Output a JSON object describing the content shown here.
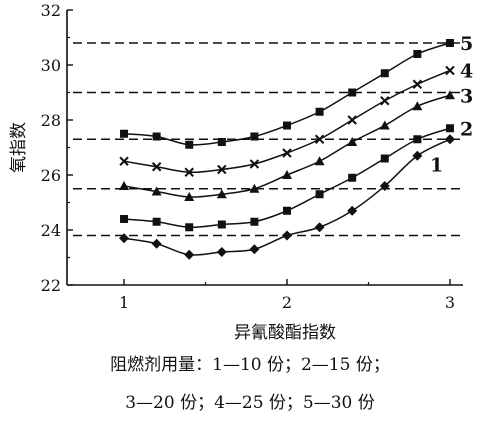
{
  "chart_data": {
    "type": "line",
    "xlabel": "异氰酸酯指数",
    "ylabel": "氧指数",
    "xlim": [
      0.65,
      3.08
    ],
    "ylim": [
      22,
      32
    ],
    "x_ticks": [
      "1",
      "2",
      "3"
    ],
    "y_ticks": [
      "22",
      "24",
      "26",
      "28",
      "30",
      "32"
    ],
    "grid": "dashed horizontal reference lines at the end values of each series",
    "x": [
      1.0,
      1.2,
      1.4,
      1.6,
      1.8,
      2.0,
      2.2,
      2.4,
      2.6,
      2.8,
      3.0
    ],
    "series": [
      {
        "name": "1",
        "marker": "diamond",
        "values": [
          23.7,
          23.5,
          23.1,
          23.2,
          23.3,
          23.8,
          24.1,
          24.7,
          25.6,
          26.7,
          27.3
        ]
      },
      {
        "name": "2",
        "marker": "square",
        "values": [
          24.4,
          24.3,
          24.1,
          24.2,
          24.3,
          24.7,
          25.3,
          25.9,
          26.6,
          27.3,
          27.7
        ]
      },
      {
        "name": "3",
        "marker": "triangle",
        "values": [
          25.6,
          25.4,
          25.2,
          25.3,
          25.5,
          26.0,
          26.5,
          27.2,
          27.8,
          28.5,
          28.9
        ]
      },
      {
        "name": "4",
        "marker": "x",
        "values": [
          26.5,
          26.3,
          26.1,
          26.2,
          26.4,
          26.8,
          27.3,
          28.0,
          28.7,
          29.3,
          29.8
        ]
      },
      {
        "name": "5",
        "marker": "square",
        "values": [
          27.5,
          27.4,
          27.1,
          27.2,
          27.4,
          27.8,
          28.3,
          29.0,
          29.7,
          30.4,
          30.8
        ]
      }
    ],
    "reference_lines": [
      23.8,
      25.5,
      27.3,
      29.0,
      30.8
    ]
  },
  "caption": {
    "line1": "阻燃剂用量：1—10 份；2—15 份；",
    "line2": "3—20 份；4—25 份；5—30 份"
  }
}
